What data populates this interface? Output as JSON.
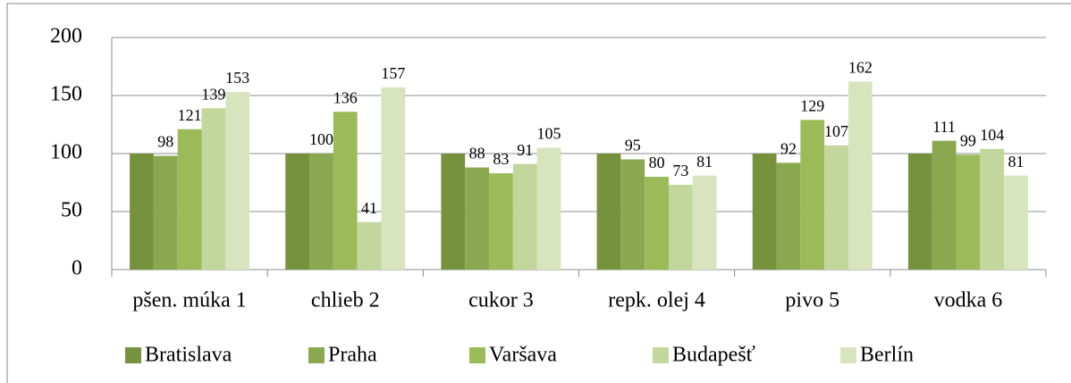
{
  "chart_data": {
    "type": "bar",
    "categories": [
      "pšen. múka 1",
      "chlieb 2",
      "cukor 3",
      "repk. olej 4",
      "pivo 5",
      "vodka 6"
    ],
    "series": [
      {
        "name": "Bratislava",
        "color": "#76923c",
        "values": [
          100,
          100,
          100,
          100,
          100,
          100
        ],
        "data_labels": false
      },
      {
        "name": "Praha",
        "color": "#8aa84f",
        "values": [
          98,
          100,
          88,
          95,
          92,
          111
        ],
        "data_labels": true
      },
      {
        "name": "Varšava",
        "color": "#9bbb59",
        "values": [
          121,
          136,
          83,
          80,
          129,
          99
        ],
        "data_labels": true
      },
      {
        "name": "Budapešť",
        "color": "#c3d69b",
        "values": [
          139,
          41,
          91,
          73,
          107,
          104
        ],
        "data_labels": true
      },
      {
        "name": "Berlín",
        "color": "#d7e4bd",
        "values": [
          153,
          157,
          105,
          81,
          162,
          81
        ],
        "data_labels": true
      }
    ],
    "ylim": [
      0,
      200
    ],
    "yticks": [
      0,
      50,
      100,
      150,
      200
    ],
    "grid": true,
    "legend": "bottom"
  }
}
